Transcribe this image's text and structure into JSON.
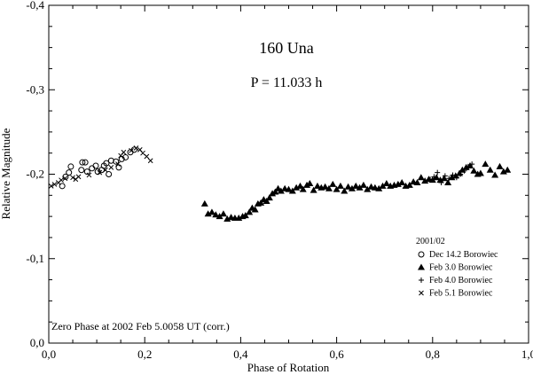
{
  "chart_data": {
    "type": "scatter",
    "title": "160 Una",
    "subtitle": "P = 11.033 h",
    "xlabel": "Phase of Rotation",
    "ylabel": "Relative Magnitude",
    "xlim": [
      0.0,
      1.0
    ],
    "ylim": [
      -0.4,
      0.0
    ],
    "y_inverted": true,
    "x_ticks": [
      0.0,
      0.2,
      0.4,
      0.6,
      0.8,
      1.0
    ],
    "x_tick_labels": [
      "0,0",
      "0,2",
      "0,4",
      "0,6",
      "0,8",
      "1,0"
    ],
    "y_ticks": [
      -0.4,
      -0.3,
      -0.2,
      -0.1,
      0.0
    ],
    "y_tick_labels": [
      "-0,4",
      "-0,3",
      "-0,2",
      "-0,1",
      "0,0"
    ],
    "grid": false,
    "legend_position": "bottom-right",
    "legend_title": "2001/02",
    "annotation": "Zero Phase at 2002 Feb 5.0058 UT (corr.)",
    "series": [
      {
        "name": "Dec 14.2 Borowiec",
        "marker": "circle-open",
        "points": [
          [
            0.028,
            -0.186
          ],
          [
            0.035,
            -0.197
          ],
          [
            0.042,
            -0.202
          ],
          [
            0.046,
            -0.209
          ],
          [
            0.068,
            -0.205
          ],
          [
            0.07,
            -0.214
          ],
          [
            0.076,
            -0.214
          ],
          [
            0.08,
            -0.203
          ],
          [
            0.09,
            -0.207
          ],
          [
            0.098,
            -0.21
          ],
          [
            0.102,
            -0.203
          ],
          [
            0.11,
            -0.205
          ],
          [
            0.115,
            -0.21
          ],
          [
            0.12,
            -0.213
          ],
          [
            0.125,
            -0.2
          ],
          [
            0.13,
            -0.216
          ],
          [
            0.14,
            -0.215
          ],
          [
            0.146,
            -0.208
          ],
          [
            0.152,
            -0.218
          ],
          [
            0.16,
            -0.22
          ],
          [
            0.17,
            -0.226
          ],
          [
            0.178,
            -0.229
          ]
        ]
      },
      {
        "name": "Feb 3.0 Borowiec",
        "marker": "triangle-filled",
        "points": [
          [
            0.325,
            -0.165
          ],
          [
            0.332,
            -0.153
          ],
          [
            0.34,
            -0.155
          ],
          [
            0.348,
            -0.152
          ],
          [
            0.356,
            -0.15
          ],
          [
            0.364,
            -0.153
          ],
          [
            0.372,
            -0.147
          ],
          [
            0.38,
            -0.149
          ],
          [
            0.388,
            -0.148
          ],
          [
            0.396,
            -0.148
          ],
          [
            0.404,
            -0.15
          ],
          [
            0.41,
            -0.151
          ],
          [
            0.418,
            -0.155
          ],
          [
            0.424,
            -0.16
          ],
          [
            0.43,
            -0.158
          ],
          [
            0.436,
            -0.165
          ],
          [
            0.442,
            -0.166
          ],
          [
            0.448,
            -0.17
          ],
          [
            0.454,
            -0.168
          ],
          [
            0.46,
            -0.172
          ],
          [
            0.466,
            -0.177
          ],
          [
            0.472,
            -0.179
          ],
          [
            0.478,
            -0.183
          ],
          [
            0.484,
            -0.18
          ],
          [
            0.492,
            -0.183
          ],
          [
            0.5,
            -0.182
          ],
          [
            0.508,
            -0.18
          ],
          [
            0.516,
            -0.184
          ],
          [
            0.524,
            -0.186
          ],
          [
            0.53,
            -0.182
          ],
          [
            0.538,
            -0.187
          ],
          [
            0.544,
            -0.189
          ],
          [
            0.552,
            -0.181
          ],
          [
            0.56,
            -0.186
          ],
          [
            0.568,
            -0.184
          ],
          [
            0.576,
            -0.185
          ],
          [
            0.584,
            -0.183
          ],
          [
            0.592,
            -0.188
          ],
          [
            0.6,
            -0.182
          ],
          [
            0.608,
            -0.186
          ],
          [
            0.616,
            -0.18
          ],
          [
            0.624,
            -0.185
          ],
          [
            0.632,
            -0.183
          ],
          [
            0.64,
            -0.186
          ],
          [
            0.648,
            -0.184
          ],
          [
            0.656,
            -0.187
          ],
          [
            0.664,
            -0.182
          ],
          [
            0.672,
            -0.185
          ],
          [
            0.68,
            -0.184
          ],
          [
            0.688,
            -0.183
          ],
          [
            0.696,
            -0.186
          ],
          [
            0.704,
            -0.189
          ],
          [
            0.712,
            -0.186
          ],
          [
            0.72,
            -0.187
          ],
          [
            0.728,
            -0.188
          ],
          [
            0.736,
            -0.19
          ],
          [
            0.744,
            -0.186
          ],
          [
            0.752,
            -0.187
          ],
          [
            0.76,
            -0.191
          ],
          [
            0.768,
            -0.19
          ],
          [
            0.776,
            -0.196
          ],
          [
            0.784,
            -0.192
          ],
          [
            0.792,
            -0.194
          ],
          [
            0.8,
            -0.193
          ],
          [
            0.808,
            -0.196
          ],
          [
            0.816,
            -0.193
          ],
          [
            0.824,
            -0.195
          ],
          [
            0.832,
            -0.19
          ],
          [
            0.84,
            -0.196
          ],
          [
            0.848,
            -0.198
          ],
          [
            0.856,
            -0.201
          ],
          [
            0.862,
            -0.205
          ],
          [
            0.87,
            -0.208
          ],
          [
            0.878,
            -0.21
          ],
          [
            0.886,
            -0.204
          ],
          [
            0.894,
            -0.2
          ],
          [
            0.9,
            -0.201
          ],
          [
            0.91,
            -0.212
          ],
          [
            0.92,
            -0.205
          ],
          [
            0.93,
            -0.199
          ],
          [
            0.94,
            -0.209
          ],
          [
            0.948,
            -0.203
          ],
          [
            0.956,
            -0.205
          ]
        ]
      },
      {
        "name": "Feb 4.0 Borowiec",
        "marker": "plus",
        "points": [
          [
            0.795,
            -0.194
          ],
          [
            0.803,
            -0.197
          ],
          [
            0.81,
            -0.202
          ],
          [
            0.818,
            -0.19
          ],
          [
            0.826,
            -0.198
          ],
          [
            0.834,
            -0.195
          ],
          [
            0.842,
            -0.199
          ],
          [
            0.85,
            -0.196
          ],
          [
            0.858,
            -0.2
          ],
          [
            0.866,
            -0.204
          ],
          [
            0.874,
            -0.209
          ],
          [
            0.882,
            -0.212
          ]
        ]
      },
      {
        "name": "Feb 5.1 Borowiec",
        "marker": "x",
        "points": [
          [
            0.005,
            -0.186
          ],
          [
            0.012,
            -0.188
          ],
          [
            0.02,
            -0.19
          ],
          [
            0.026,
            -0.193
          ],
          [
            0.034,
            -0.195
          ],
          [
            0.05,
            -0.196
          ],
          [
            0.056,
            -0.194
          ],
          [
            0.062,
            -0.197
          ],
          [
            0.084,
            -0.199
          ],
          [
            0.106,
            -0.202
          ],
          [
            0.118,
            -0.205
          ],
          [
            0.13,
            -0.208
          ],
          [
            0.144,
            -0.212
          ],
          [
            0.15,
            -0.222
          ],
          [
            0.156,
            -0.226
          ],
          [
            0.172,
            -0.228
          ],
          [
            0.182,
            -0.231
          ],
          [
            0.19,
            -0.229
          ],
          [
            0.196,
            -0.225
          ],
          [
            0.204,
            -0.221
          ],
          [
            0.212,
            -0.216
          ]
        ]
      }
    ]
  }
}
